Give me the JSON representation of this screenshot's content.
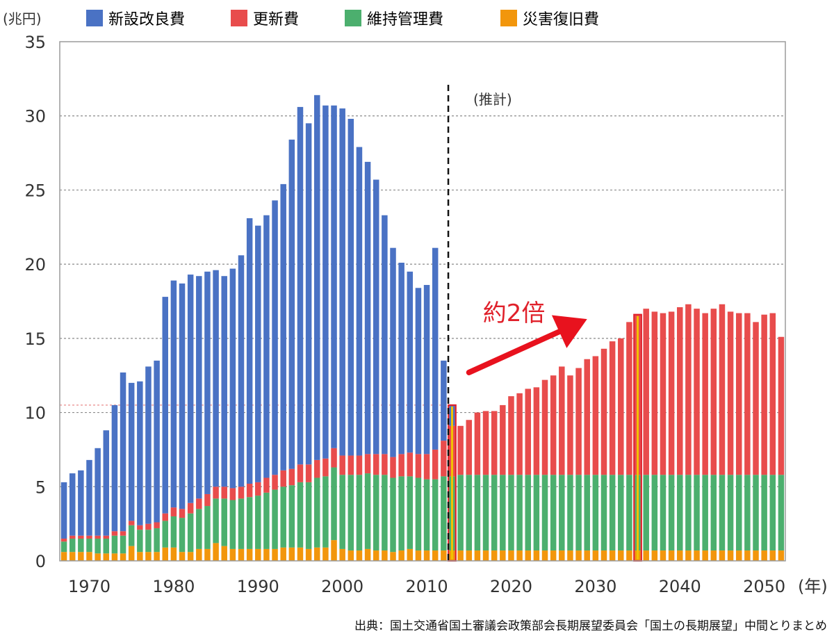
{
  "chart_data": {
    "type": "bar",
    "stacked": true,
    "y_unit": "(兆円)",
    "x_unit": "(年)",
    "ylim": [
      0,
      35
    ],
    "y_ticks": [
      0,
      5,
      10,
      15,
      20,
      25,
      30,
      35
    ],
    "x_tick_labels": [
      "1970",
      "1980",
      "1990",
      "2000",
      "2010",
      "2020",
      "2030",
      "2040",
      "2050"
    ],
    "grid": "horizontal dotted",
    "legend_position": "top",
    "x_start": 1967,
    "x_end": 2052,
    "forecast_start_year": 2013,
    "forecast_label": "(推計)",
    "annotation_text": "約2倍",
    "source": "出典：国土交通省国土審議会政策部会長期展望委員会「国土の長期展望」中間とりまとめ",
    "series": [
      {
        "name": "新設改良費",
        "color": "#4a72c4",
        "values": [
          3.8,
          4.2,
          4.4,
          5.1,
          5.9,
          7.1,
          8.5,
          10.7,
          9.3,
          9.7,
          10.6,
          10.9,
          14.6,
          15.3,
          15.2,
          15.4,
          15.0,
          15.0,
          14.6,
          14.2,
          14.8,
          15.6,
          17.9,
          17.3,
          17.7,
          18.5,
          19.3,
          22.2,
          24.1,
          23.0,
          24.6,
          23.8,
          23.1,
          23.4,
          22.7,
          20.8,
          19.7,
          18.5,
          16.1,
          14.1,
          12.9,
          12.2,
          11.2,
          11.4,
          13.6,
          5.4,
          1.4,
          0,
          0,
          0,
          0,
          0,
          0,
          0,
          0,
          0,
          0,
          0,
          0,
          0,
          0,
          0,
          0,
          0,
          0,
          0,
          0,
          0,
          0,
          0,
          0,
          0,
          0,
          0,
          0,
          0,
          0,
          0,
          0,
          0,
          0,
          0,
          0,
          0,
          0,
          0
        ]
      },
      {
        "name": "更新費",
        "color": "#e84c4c",
        "values": [
          0.2,
          0.2,
          0.2,
          0.2,
          0.2,
          0.2,
          0.3,
          0.3,
          0.3,
          0.3,
          0.4,
          0.4,
          0.5,
          0.6,
          0.6,
          0.7,
          0.7,
          0.8,
          0.8,
          0.8,
          0.8,
          0.8,
          0.9,
          0.9,
          1.0,
          1.0,
          1.1,
          1.1,
          1.2,
          1.2,
          1.2,
          1.2,
          1.3,
          1.3,
          1.3,
          1.3,
          1.3,
          1.4,
          1.4,
          1.4,
          1.5,
          1.6,
          1.6,
          1.7,
          2.0,
          2.4,
          3.4,
          3.3,
          3.7,
          4.2,
          4.3,
          4.3,
          4.7,
          5.3,
          5.5,
          5.8,
          5.9,
          6.4,
          6.7,
          7.3,
          6.7,
          7.2,
          7.8,
          8.0,
          8.5,
          9.0,
          9.2,
          10.3,
          10.8,
          11.2,
          11.0,
          10.9,
          11.0,
          11.3,
          11.5,
          11.2,
          10.9,
          11.2,
          11.5,
          11.0,
          10.9,
          10.9,
          10.3,
          10.8,
          10.9,
          9.3
        ]
      },
      {
        "name": "維持管理費",
        "color": "#4caf6e",
        "values": [
          0.7,
          0.9,
          0.9,
          0.9,
          1.0,
          1.0,
          1.2,
          1.2,
          1.4,
          1.5,
          1.5,
          1.6,
          1.8,
          2.1,
          2.3,
          2.6,
          2.7,
          2.9,
          3.0,
          3.2,
          3.3,
          3.4,
          3.5,
          3.6,
          3.8,
          4.0,
          4.1,
          4.2,
          4.4,
          4.5,
          4.7,
          4.8,
          4.9,
          5.0,
          5.1,
          5.1,
          5.1,
          5.1,
          5.1,
          5.0,
          5.0,
          4.9,
          4.9,
          4.8,
          4.8,
          5.0,
          5.0,
          5.1,
          5.1,
          5.1,
          5.1,
          5.1,
          5.1,
          5.1,
          5.1,
          5.1,
          5.1,
          5.1,
          5.1,
          5.1,
          5.1,
          5.1,
          5.1,
          5.1,
          5.1,
          5.1,
          5.1,
          5.1,
          5.1,
          5.1,
          5.1,
          5.1,
          5.1,
          5.1,
          5.1,
          5.1,
          5.1,
          5.1,
          5.1,
          5.1,
          5.1,
          5.1,
          5.1,
          5.1,
          5.1,
          5.1
        ]
      },
      {
        "name": "災害復旧費",
        "color": "#f2960c",
        "values": [
          0.6,
          0.6,
          0.6,
          0.6,
          0.5,
          0.5,
          0.5,
          0.5,
          1.0,
          0.6,
          0.6,
          0.6,
          0.9,
          0.9,
          0.6,
          0.6,
          0.8,
          0.8,
          1.2,
          1.0,
          0.8,
          0.8,
          0.8,
          0.8,
          0.8,
          0.8,
          0.9,
          0.9,
          0.9,
          0.8,
          0.9,
          0.9,
          1.4,
          0.8,
          0.7,
          0.7,
          0.8,
          0.7,
          0.7,
          0.6,
          0.7,
          0.8,
          0.7,
          0.7,
          0.7,
          0.7,
          0.7,
          0.7,
          0.7,
          0.7,
          0.7,
          0.7,
          0.7,
          0.7,
          0.7,
          0.7,
          0.7,
          0.7,
          0.7,
          0.7,
          0.7,
          0.7,
          0.7,
          0.7,
          0.7,
          0.7,
          0.7,
          0.7,
          0.7,
          0.7,
          0.7,
          0.7,
          0.7,
          0.7,
          0.7,
          0.7,
          0.7,
          0.7,
          0.7,
          0.7,
          0.7,
          0.7,
          0.7,
          0.7,
          0.7,
          0.7
        ]
      }
    ],
    "highlighted_years": [
      2013,
      2035
    ]
  }
}
